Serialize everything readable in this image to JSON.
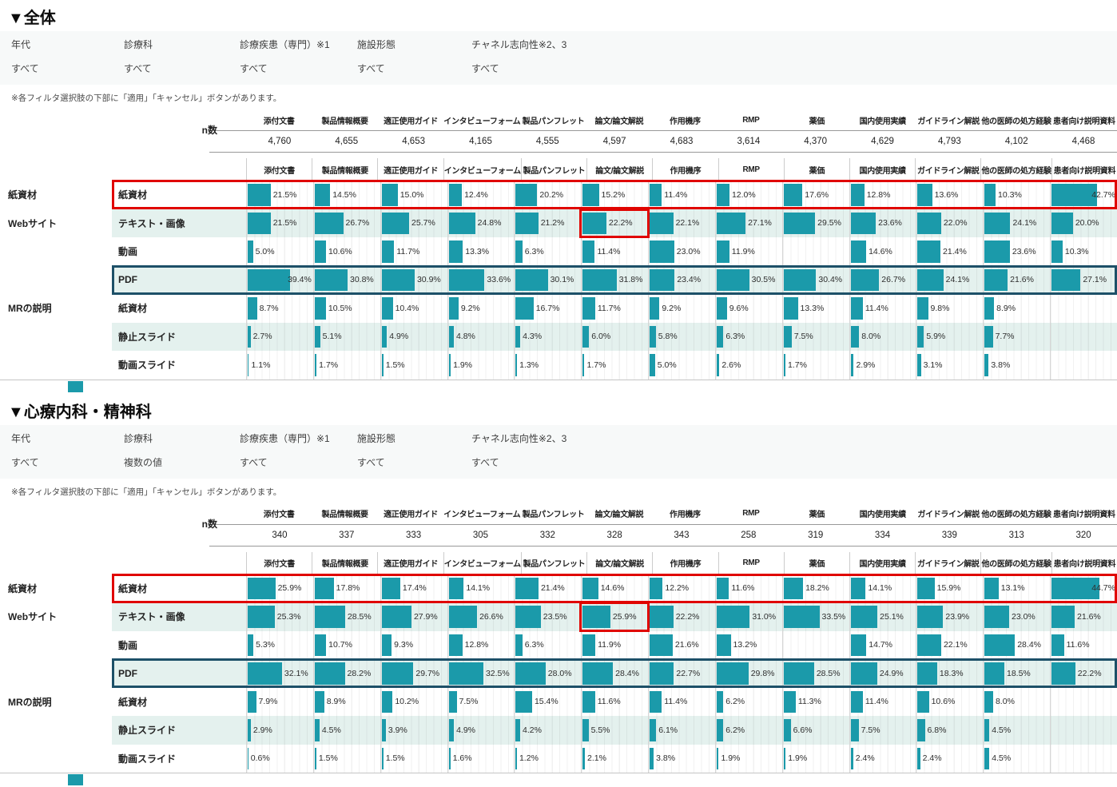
{
  "colors": {
    "bar": "#1b9aaa",
    "row_alt_bg": "#e4f1ee",
    "red_highlight": "#e00400",
    "navy_highlight": "#1d5068",
    "filter_bg": "#f7f9f9"
  },
  "chart_data": [
    {
      "type": "bar",
      "title": "▼全体",
      "filters": [
        {
          "label": "年代",
          "value": "すべて"
        },
        {
          "label": "診療科",
          "value": "すべて"
        },
        {
          "label": "診療疾患（専門）※1",
          "value": "すべて"
        },
        {
          "label": "施設形態",
          "value": "すべて"
        },
        {
          "label": "チャネル志向性※2、3",
          "value": "すべて"
        }
      ],
      "note": "※各フィルタ選択肢の下部に「適用」「キャンセル」ボタンがあります。",
      "n_label": "n数",
      "columns": [
        "添付文書",
        "製品情報概要",
        "適正使用ガイド",
        "インタビューフォーム",
        "製品パンフレット",
        "論文/論文解説",
        "作用機序",
        "RMP",
        "薬価",
        "国内使用実績",
        "ガイドライン解説",
        "他の医師の処方経験",
        "患者向け説明資料"
      ],
      "n_values": [
        "4,760",
        "4,655",
        "4,653",
        "4,165",
        "4,555",
        "4,597",
        "4,683",
        "3,614",
        "4,370",
        "4,629",
        "4,793",
        "4,102",
        "4,468"
      ],
      "unit": "%",
      "xlim": [
        0,
        62
      ],
      "rows": [
        {
          "group": "紙資材",
          "label": "紙資材",
          "values": [
            21.5,
            14.5,
            15.0,
            12.4,
            20.2,
            15.2,
            11.4,
            12.0,
            17.6,
            12.8,
            13.6,
            10.3,
            42.7
          ]
        },
        {
          "group": "Webサイト",
          "label": "テキスト・画像",
          "values": [
            21.5,
            26.7,
            25.7,
            24.8,
            21.2,
            22.2,
            22.1,
            27.1,
            29.5,
            23.6,
            22.0,
            24.1,
            20.0
          ]
        },
        {
          "group": "",
          "label": "動画",
          "values": [
            5.0,
            10.6,
            11.7,
            13.3,
            6.3,
            11.4,
            23.0,
            11.9,
            null,
            14.6,
            21.4,
            23.6,
            10.3
          ]
        },
        {
          "group": "",
          "label": "PDF",
          "values": [
            39.4,
            30.8,
            30.9,
            33.6,
            30.1,
            31.8,
            23.4,
            30.5,
            30.4,
            26.7,
            24.1,
            21.6,
            27.1
          ]
        },
        {
          "group": "MRの説明",
          "label": "紙資材",
          "values": [
            8.7,
            10.5,
            10.4,
            9.2,
            16.7,
            11.7,
            9.2,
            9.6,
            13.3,
            11.4,
            9.8,
            8.9,
            null
          ]
        },
        {
          "group": "",
          "label": "静止スライド",
          "values": [
            2.7,
            5.1,
            4.9,
            4.8,
            4.3,
            6.0,
            5.8,
            6.3,
            7.5,
            8.0,
            5.9,
            7.7,
            null
          ]
        },
        {
          "group": "",
          "label": "動画スライド",
          "values": [
            1.1,
            1.7,
            1.5,
            1.9,
            1.3,
            1.7,
            5.0,
            2.6,
            1.7,
            2.9,
            3.1,
            3.8,
            null
          ]
        }
      ],
      "highlights": {
        "red_row_index": 0,
        "navy_row_index": 3,
        "red_cell": {
          "row": 1,
          "col": 5
        }
      }
    },
    {
      "type": "bar",
      "title": "▼心療内科・精神科",
      "filters": [
        {
          "label": "年代",
          "value": "すべて"
        },
        {
          "label": "診療科",
          "value": "複数の値"
        },
        {
          "label": "診療疾患（専門）※1",
          "value": "すべて"
        },
        {
          "label": "施設形態",
          "value": "すべて"
        },
        {
          "label": "チャネル志向性※2、3",
          "value": "すべて"
        }
      ],
      "note": "※各フィルタ選択肢の下部に「適用」「キャンセル」ボタンがあります。",
      "n_label": "n数",
      "columns": [
        "添付文書",
        "製品情報概要",
        "適正使用ガイド",
        "インタビューフォーム",
        "製品パンフレット",
        "論文/論文解説",
        "作用機序",
        "RMP",
        "薬価",
        "国内使用実績",
        "ガイドライン解説",
        "他の医師の処方経験",
        "患者向け説明資料"
      ],
      "n_values": [
        "340",
        "337",
        "333",
        "305",
        "332",
        "328",
        "343",
        "258",
        "319",
        "334",
        "339",
        "313",
        "320"
      ],
      "unit": "%",
      "xlim": [
        0,
        62
      ],
      "rows": [
        {
          "group": "紙資材",
          "label": "紙資材",
          "values": [
            25.9,
            17.8,
            17.4,
            14.1,
            21.4,
            14.6,
            12.2,
            11.6,
            18.2,
            14.1,
            15.9,
            13.1,
            44.7
          ]
        },
        {
          "group": "Webサイト",
          "label": "テキスト・画像",
          "values": [
            25.3,
            28.5,
            27.9,
            26.6,
            23.5,
            25.9,
            22.2,
            31.0,
            33.5,
            25.1,
            23.9,
            23.0,
            21.6
          ]
        },
        {
          "group": "",
          "label": "動画",
          "values": [
            5.3,
            10.7,
            9.3,
            12.8,
            6.3,
            11.9,
            21.6,
            13.2,
            null,
            14.7,
            22.1,
            28.4,
            11.6
          ]
        },
        {
          "group": "",
          "label": "PDF",
          "values": [
            32.1,
            28.2,
            29.7,
            32.5,
            28.0,
            28.4,
            22.7,
            29.8,
            28.5,
            24.9,
            18.3,
            18.5,
            22.2
          ]
        },
        {
          "group": "MRの説明",
          "label": "紙資材",
          "values": [
            7.9,
            8.9,
            10.2,
            7.5,
            15.4,
            11.6,
            11.4,
            6.2,
            11.3,
            11.4,
            10.6,
            8.0,
            null
          ]
        },
        {
          "group": "",
          "label": "静止スライド",
          "values": [
            2.9,
            4.5,
            3.9,
            4.9,
            4.2,
            5.5,
            6.1,
            6.2,
            6.6,
            7.5,
            6.8,
            4.5,
            null
          ]
        },
        {
          "group": "",
          "label": "動画スライド",
          "values": [
            0.6,
            1.5,
            1.5,
            1.6,
            1.2,
            2.1,
            3.8,
            1.9,
            1.9,
            2.4,
            2.4,
            4.5,
            null
          ]
        }
      ],
      "highlights": {
        "red_row_index": 0,
        "navy_row_index": 3,
        "red_cell": {
          "row": 1,
          "col": 5
        }
      }
    }
  ]
}
